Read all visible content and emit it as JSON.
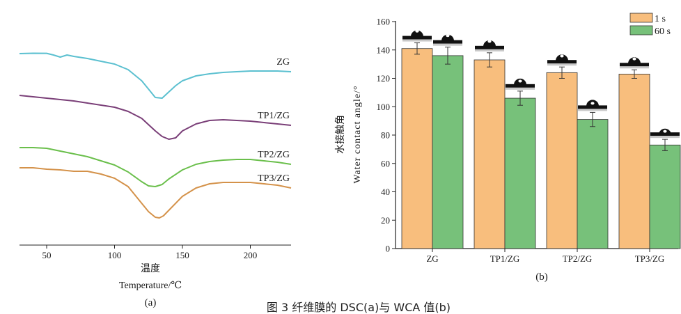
{
  "caption": "图 3 纤维膜的 DSC(a)与 WCA 值(b)",
  "chart_data": [
    {
      "panel": "(a)",
      "type": "line",
      "xlabel": "温度",
      "xlabel_en": "Temperature/℃",
      "ylabel": "",
      "xlim": [
        30,
        230
      ],
      "xticks": [
        50,
        100,
        150,
        200
      ],
      "series": [
        {
          "name": "ZG",
          "color": "#5bc0d0",
          "x": [
            30,
            40,
            50,
            55,
            60,
            65,
            70,
            80,
            90,
            100,
            110,
            120,
            125,
            130,
            135,
            140,
            145,
            150,
            160,
            170,
            180,
            190,
            200,
            210,
            220,
            230
          ],
          "y": [
            -1,
            -0.5,
            -0.6,
            -3,
            -6,
            -3,
            -5,
            -8,
            -12,
            -16,
            -24,
            -40,
            -52,
            -64,
            -65,
            -56,
            -47,
            -40,
            -33,
            -30,
            -28,
            -27,
            -26,
            -26,
            -26,
            -27
          ]
        },
        {
          "name": "TP1/ZG",
          "color": "#7a3f78",
          "x": [
            30,
            40,
            50,
            60,
            70,
            80,
            90,
            100,
            110,
            120,
            130,
            135,
            140,
            145,
            150,
            160,
            170,
            180,
            190,
            200,
            210,
            220,
            230
          ],
          "y": [
            -1,
            -3,
            -5,
            -7,
            -9,
            -12,
            -15,
            -18,
            -24,
            -34,
            -52,
            -60,
            -64,
            -62,
            -52,
            -42,
            -37,
            -36,
            -37,
            -38,
            -40,
            -42,
            -44
          ]
        },
        {
          "name": "TP2/ZG",
          "color": "#6abf4b",
          "x": [
            30,
            40,
            50,
            60,
            70,
            80,
            90,
            100,
            110,
            120,
            125,
            130,
            135,
            140,
            150,
            160,
            170,
            180,
            190,
            200,
            210,
            220,
            230
          ],
          "y": [
            -1,
            -1,
            -2,
            -6,
            -10,
            -14,
            -20,
            -26,
            -36,
            -50,
            -56,
            -57,
            -54,
            -46,
            -33,
            -25,
            -21,
            -19,
            -18,
            -18,
            -20,
            -22,
            -25
          ]
        },
        {
          "name": "TP3/ZG",
          "color": "#d4924a",
          "x": [
            30,
            40,
            50,
            60,
            70,
            80,
            90,
            100,
            110,
            120,
            125,
            130,
            133,
            136,
            140,
            150,
            160,
            170,
            180,
            190,
            200,
            210,
            220,
            230
          ],
          "y": [
            -1,
            -1,
            -3,
            -4,
            -6,
            -6,
            -10,
            -16,
            -28,
            -52,
            -64,
            -72,
            -73,
            -70,
            -62,
            -42,
            -30,
            -24,
            -22,
            -22,
            -22,
            -24,
            -26,
            -30
          ]
        }
      ]
    },
    {
      "panel": "(b)",
      "type": "bar",
      "ylabel_cn": "水接触角",
      "ylabel": "Water contact angle/°",
      "ylim": [
        0,
        160
      ],
      "yticks": [
        0,
        20,
        40,
        60,
        80,
        100,
        120,
        140,
        160
      ],
      "categories": [
        "ZG",
        "TP1/ZG",
        "TP2/ZG",
        "TP3/ZG"
      ],
      "legend_position": "top-right",
      "series": [
        {
          "name": "1 s",
          "color": "#f8be7d",
          "values": [
            141,
            133,
            124,
            123
          ],
          "errors": [
            4,
            5,
            4,
            3
          ]
        },
        {
          "name": "60 s",
          "color": "#77c17a",
          "values": [
            136,
            106,
            91,
            73
          ],
          "errors": [
            6,
            5,
            5,
            4
          ]
        }
      ]
    }
  ]
}
